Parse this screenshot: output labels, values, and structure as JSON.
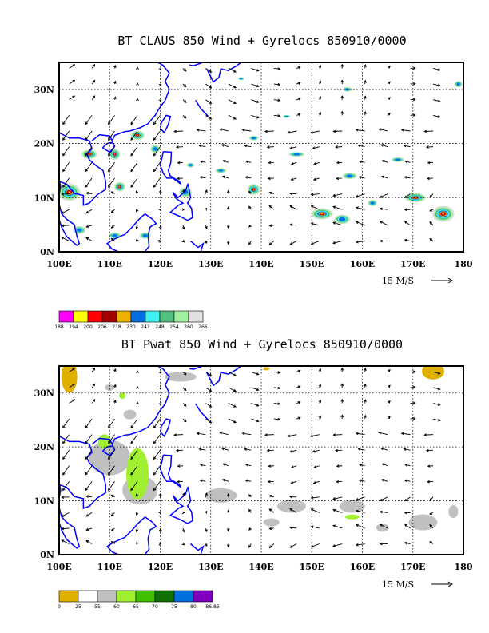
{
  "chart_data": [
    {
      "type": "heatmap",
      "title": "BT CLAUS 850 Wind + Gyrelocs 850910/0000",
      "x_ticks": [
        "100E",
        "110E",
        "120E",
        "130E",
        "140E",
        "150E",
        "160E",
        "170E",
        "180"
      ],
      "y_ticks": [
        "0N",
        "10N",
        "20N",
        "30N"
      ],
      "xlim": [
        100,
        180
      ],
      "ylim": [
        0,
        35
      ],
      "grid": "dotted",
      "reference_vector": "15 M/S",
      "legend": {
        "labels": [
          "188",
          "194",
          "200",
          "206",
          "218",
          "230",
          "242",
          "248",
          "254",
          "260",
          "266"
        ],
        "colors": [
          "#ff00ff",
          "#ffff00",
          "#ff0000",
          "#a50000",
          "#f0b000",
          "#0070e0",
          "#40f0f0",
          "#50c080",
          "#a0f0a0",
          "#e0e0e0"
        ]
      }
    },
    {
      "type": "heatmap",
      "title": "BT Pwat 850 Wind + Gyrelocs 850910/0000",
      "x_ticks": [
        "100E",
        "110E",
        "120E",
        "130E",
        "140E",
        "150E",
        "160E",
        "170E",
        "180"
      ],
      "y_ticks": [
        "0N",
        "10N",
        "20N",
        "30N"
      ],
      "xlim": [
        100,
        180
      ],
      "ylim": [
        0,
        35
      ],
      "grid": "dotted",
      "reference_vector": "15 M/S",
      "legend": {
        "labels": [
          "0",
          "25",
          "55",
          "60",
          "65",
          "70",
          "75",
          "80",
          "86.86"
        ],
        "colors": [
          "#e0b000",
          "#ffffff",
          "#c0c0c0",
          "#a0f030",
          "#40c000",
          "#107000",
          "#0070e0",
          "#8000c0"
        ]
      }
    }
  ]
}
